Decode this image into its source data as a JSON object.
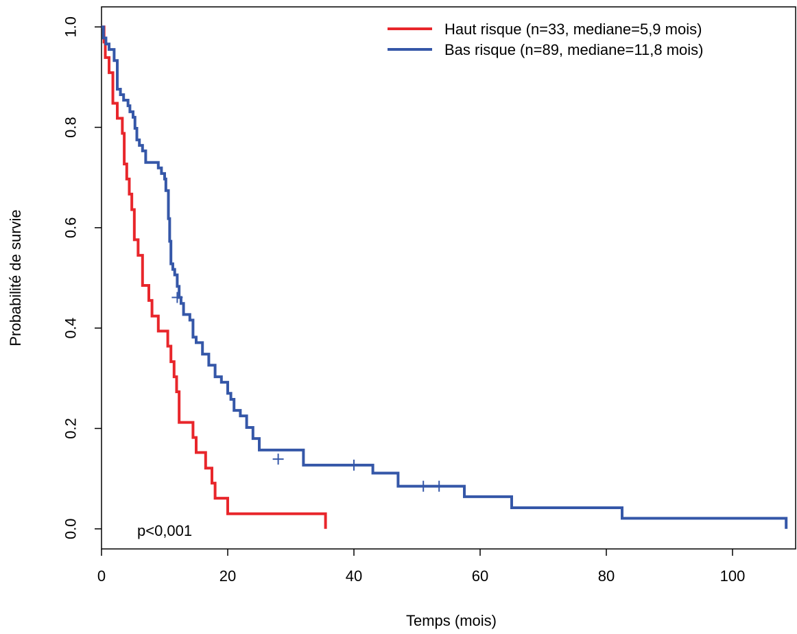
{
  "chart_data": {
    "type": "line",
    "title": "",
    "xlabel": "Temps (mois)",
    "ylabel": "Probabilité de survie",
    "xlim": [
      0,
      110
    ],
    "ylim": [
      -0.04,
      1.04
    ],
    "x_ticks": [
      0,
      20,
      40,
      60,
      80,
      100
    ],
    "x_tick_labels": [
      "0",
      "20",
      "40",
      "60",
      "80",
      "100"
    ],
    "y_ticks": [
      0.0,
      0.2,
      0.4,
      0.6,
      0.8,
      1.0
    ],
    "y_tick_labels": [
      "0.0",
      "0.2",
      "0.4",
      "0.6",
      "0.8",
      "1.0"
    ],
    "grid": false,
    "legend_position": "top-right",
    "annotation": "p<0,001",
    "series": [
      {
        "name": "Haut risque (n=33, mediane=5,9 mois)",
        "color": "#e8262b",
        "x": [
          0,
          0.4,
          0.6,
          1.2,
          1.8,
          2.5,
          3.3,
          3.6,
          4.0,
          4.4,
          4.8,
          5.2,
          5.8,
          6.5,
          7.5,
          8.0,
          9.0,
          10.5,
          11.0,
          11.5,
          11.9,
          12.3,
          14.5,
          15.0,
          16.5,
          17.5,
          18.0,
          19.5,
          20.0,
          35.5
        ],
        "y": [
          1.0,
          0.97,
          0.939,
          0.909,
          0.848,
          0.818,
          0.788,
          0.727,
          0.697,
          0.667,
          0.636,
          0.576,
          0.545,
          0.485,
          0.455,
          0.424,
          0.394,
          0.364,
          0.333,
          0.303,
          0.273,
          0.212,
          0.182,
          0.152,
          0.121,
          0.091,
          0.061,
          0.061,
          0.03,
          0.0
        ],
        "censored_x": [],
        "censored_y": []
      },
      {
        "name": "Bas risque (n=89, mediane=11,8 mois)",
        "color": "#3557a8",
        "x": [
          0,
          0.3,
          0.7,
          1.2,
          2.0,
          2.5,
          3.0,
          3.5,
          4.2,
          4.5,
          5.0,
          5.3,
          5.6,
          6.0,
          6.5,
          7.0,
          8.0,
          9.0,
          9.5,
          10.0,
          10.2,
          10.6,
          10.8,
          11.0,
          11.3,
          11.6,
          12.0,
          12.3,
          12.6,
          13.0,
          14.0,
          14.5,
          15.0,
          16.0,
          17.0,
          18.0,
          19.0,
          20.0,
          20.5,
          21.0,
          22.0,
          23.0,
          24.0,
          25.0,
          32.0,
          43.0,
          47.0,
          57.5,
          65.0,
          82.5,
          108.5
        ],
        "y": [
          1.0,
          0.978,
          0.966,
          0.955,
          0.933,
          0.876,
          0.865,
          0.854,
          0.843,
          0.831,
          0.82,
          0.798,
          0.775,
          0.764,
          0.753,
          0.73,
          0.73,
          0.719,
          0.708,
          0.697,
          0.674,
          0.618,
          0.573,
          0.528,
          0.517,
          0.506,
          0.483,
          0.461,
          0.449,
          0.427,
          0.416,
          0.382,
          0.371,
          0.348,
          0.326,
          0.303,
          0.292,
          0.27,
          0.258,
          0.236,
          0.225,
          0.202,
          0.18,
          0.157,
          0.127,
          0.111,
          0.085,
          0.064,
          0.042,
          0.021,
          0.0
        ],
        "censored_x": [
          12.0,
          28.0,
          40.0,
          51.0,
          53.5
        ],
        "censored_y": [
          0.461,
          0.139,
          0.127,
          0.085,
          0.085
        ]
      }
    ]
  }
}
